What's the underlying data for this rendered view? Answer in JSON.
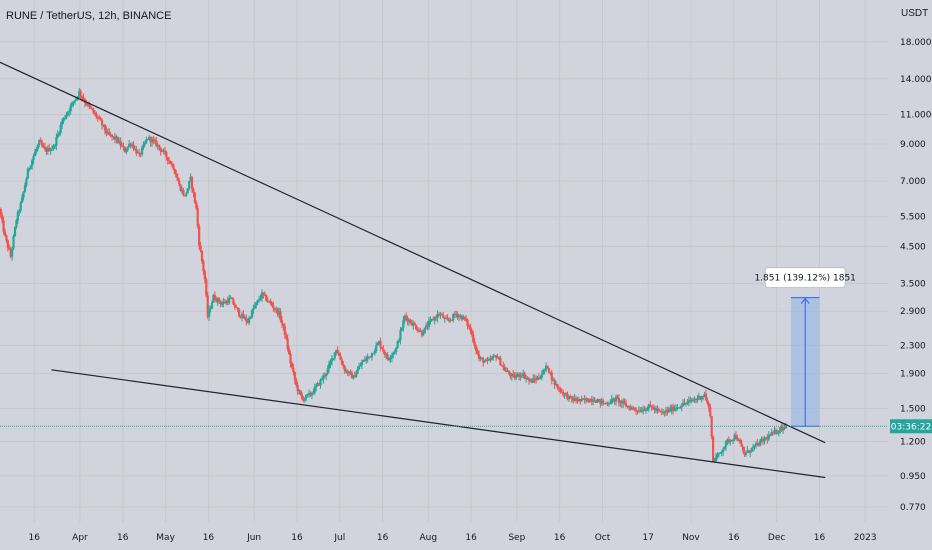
{
  "header": {
    "title": "RUNE / TetherUS, 12h, BINANCE",
    "unit": "USDT"
  },
  "colors": {
    "background": "#d1d4dc",
    "grid": "#c5c8cf",
    "up": "#26a69a",
    "down": "#ef5350",
    "trendline": "#1e222d",
    "measure_fill": "#8fb0e6",
    "measure_stroke": "#2962ff",
    "price_line": "#26a69a"
  },
  "current_price_label": "03:36:22",
  "measure_label": "1.851 (139.12%) 1851",
  "chart_data": {
    "type": "candlestick",
    "title": "RUNE / TetherUS, 12h, BINANCE",
    "y_scale": "log",
    "ylim": [
      0.7,
      21
    ],
    "y_ticks": [
      {
        "value": 18.0,
        "label": "18.000"
      },
      {
        "value": 14.0,
        "label": "14.000"
      },
      {
        "value": 11.0,
        "label": "11.000"
      },
      {
        "value": 9.0,
        "label": "9.000"
      },
      {
        "value": 7.0,
        "label": "7.000"
      },
      {
        "value": 5.5,
        "label": "5.500"
      },
      {
        "value": 4.5,
        "label": "4.500"
      },
      {
        "value": 3.5,
        "label": "3.500"
      },
      {
        "value": 2.9,
        "label": "2.900"
      },
      {
        "value": 2.3,
        "label": "2.300"
      },
      {
        "value": 1.9,
        "label": "1.900"
      },
      {
        "value": 1.5,
        "label": "1.500"
      },
      {
        "value": 1.2,
        "label": "1.200"
      },
      {
        "value": 0.95,
        "label": "0.950"
      },
      {
        "value": 0.77,
        "label": "0.770"
      }
    ],
    "x_ticks": [
      "16",
      "Apr",
      "16",
      "May",
      "16",
      "Jun",
      "16",
      "Jul",
      "16",
      "Aug",
      "16",
      "Sep",
      "16",
      "Oct",
      "17",
      "Nov",
      "16",
      "Dec",
      "16",
      "2023"
    ],
    "x_range_days": [
      "2022-03-04",
      "2023-01-09"
    ],
    "x_tick_dates": [
      "2022-03-16",
      "2022-04-01",
      "2022-04-16",
      "2022-05-01",
      "2022-05-16",
      "2022-06-01",
      "2022-06-16",
      "2022-07-01",
      "2022-07-16",
      "2022-08-01",
      "2022-08-16",
      "2022-09-01",
      "2022-09-16",
      "2022-10-01",
      "2022-10-17",
      "2022-11-01",
      "2022-11-16",
      "2022-12-01",
      "2022-12-16",
      "2023-01-01"
    ],
    "path": [
      [
        "2022-03-04",
        5.8
      ],
      [
        "2022-03-06",
        4.8
      ],
      [
        "2022-03-08",
        4.2
      ],
      [
        "2022-03-10",
        5.4
      ],
      [
        "2022-03-12",
        6.2
      ],
      [
        "2022-03-14",
        7.5
      ],
      [
        "2022-03-16",
        8.3
      ],
      [
        "2022-03-18",
        9.1
      ],
      [
        "2022-03-20",
        8.6
      ],
      [
        "2022-03-23",
        8.8
      ],
      [
        "2022-03-26",
        10.5
      ],
      [
        "2022-03-29",
        11.6
      ],
      [
        "2022-04-01",
        12.8
      ],
      [
        "2022-04-03",
        12.0
      ],
      [
        "2022-04-05",
        11.4
      ],
      [
        "2022-04-08",
        10.6
      ],
      [
        "2022-04-11",
        9.6
      ],
      [
        "2022-04-14",
        9.3
      ],
      [
        "2022-04-17",
        8.6
      ],
      [
        "2022-04-19",
        9.1
      ],
      [
        "2022-04-22",
        8.3
      ],
      [
        "2022-04-25",
        9.4
      ],
      [
        "2022-04-28",
        9.0
      ],
      [
        "2022-05-01",
        8.4
      ],
      [
        "2022-05-04",
        7.7
      ],
      [
        "2022-05-06",
        6.8
      ],
      [
        "2022-05-08",
        6.3
      ],
      [
        "2022-05-10",
        7.1
      ],
      [
        "2022-05-12",
        5.8
      ],
      [
        "2022-05-13",
        4.6
      ],
      [
        "2022-05-15",
        3.6
      ],
      [
        "2022-05-16",
        2.8
      ],
      [
        "2022-05-18",
        3.2
      ],
      [
        "2022-05-21",
        3.05
      ],
      [
        "2022-05-24",
        3.15
      ],
      [
        "2022-05-27",
        2.85
      ],
      [
        "2022-05-30",
        2.7
      ],
      [
        "2022-06-01",
        2.95
      ],
      [
        "2022-06-04",
        3.25
      ],
      [
        "2022-06-07",
        3.05
      ],
      [
        "2022-06-10",
        2.85
      ],
      [
        "2022-06-12",
        2.5
      ],
      [
        "2022-06-14",
        2.05
      ],
      [
        "2022-06-16",
        1.75
      ],
      [
        "2022-06-18",
        1.6
      ],
      [
        "2022-06-21",
        1.65
      ],
      [
        "2022-06-24",
        1.78
      ],
      [
        "2022-06-27",
        1.95
      ],
      [
        "2022-06-30",
        2.25
      ],
      [
        "2022-07-03",
        1.95
      ],
      [
        "2022-07-06",
        1.85
      ],
      [
        "2022-07-09",
        2.05
      ],
      [
        "2022-07-12",
        2.15
      ],
      [
        "2022-07-15",
        2.35
      ],
      [
        "2022-07-18",
        2.1
      ],
      [
        "2022-07-21",
        2.25
      ],
      [
        "2022-07-24",
        2.8
      ],
      [
        "2022-07-27",
        2.65
      ],
      [
        "2022-07-30",
        2.5
      ],
      [
        "2022-08-02",
        2.7
      ],
      [
        "2022-08-05",
        2.85
      ],
      [
        "2022-08-08",
        2.7
      ],
      [
        "2022-08-11",
        2.85
      ],
      [
        "2022-08-14",
        2.75
      ],
      [
        "2022-08-16",
        2.55
      ],
      [
        "2022-08-19",
        2.1
      ],
      [
        "2022-08-22",
        2.05
      ],
      [
        "2022-08-25",
        2.15
      ],
      [
        "2022-08-28",
        1.95
      ],
      [
        "2022-08-31",
        1.85
      ],
      [
        "2022-09-03",
        1.9
      ],
      [
        "2022-09-06",
        1.8
      ],
      [
        "2022-09-09",
        1.85
      ],
      [
        "2022-09-12",
        2.0
      ],
      [
        "2022-09-14",
        1.8
      ],
      [
        "2022-09-17",
        1.68
      ],
      [
        "2022-09-20",
        1.6
      ],
      [
        "2022-09-24",
        1.58
      ],
      [
        "2022-09-28",
        1.6
      ],
      [
        "2022-10-02",
        1.55
      ],
      [
        "2022-10-06",
        1.6
      ],
      [
        "2022-10-10",
        1.52
      ],
      [
        "2022-10-14",
        1.48
      ],
      [
        "2022-10-18",
        1.52
      ],
      [
        "2022-10-22",
        1.45
      ],
      [
        "2022-10-26",
        1.5
      ],
      [
        "2022-10-30",
        1.55
      ],
      [
        "2022-11-03",
        1.6
      ],
      [
        "2022-11-06",
        1.65
      ],
      [
        "2022-11-08",
        1.45
      ],
      [
        "2022-11-09",
        1.05
      ],
      [
        "2022-11-11",
        1.1
      ],
      [
        "2022-11-14",
        1.2
      ],
      [
        "2022-11-17",
        1.25
      ],
      [
        "2022-11-20",
        1.1
      ],
      [
        "2022-11-23",
        1.15
      ],
      [
        "2022-11-26",
        1.2
      ],
      [
        "2022-11-29",
        1.25
      ],
      [
        "2022-12-02",
        1.3
      ],
      [
        "2022-12-04",
        1.33
      ]
    ],
    "trendlines": [
      {
        "name": "upper",
        "from": [
          "2022-03-03",
          15.8
        ],
        "to": [
          "2022-12-18",
          1.19
        ]
      },
      {
        "name": "lower",
        "from": [
          "2022-03-22",
          1.95
        ],
        "to": [
          "2022-12-18",
          0.94
        ]
      }
    ],
    "current_price": 1.33,
    "measure": {
      "from_price": 1.33,
      "to_price": 3.18,
      "from_date": "2022-12-06",
      "to_date": "2022-12-16"
    }
  }
}
